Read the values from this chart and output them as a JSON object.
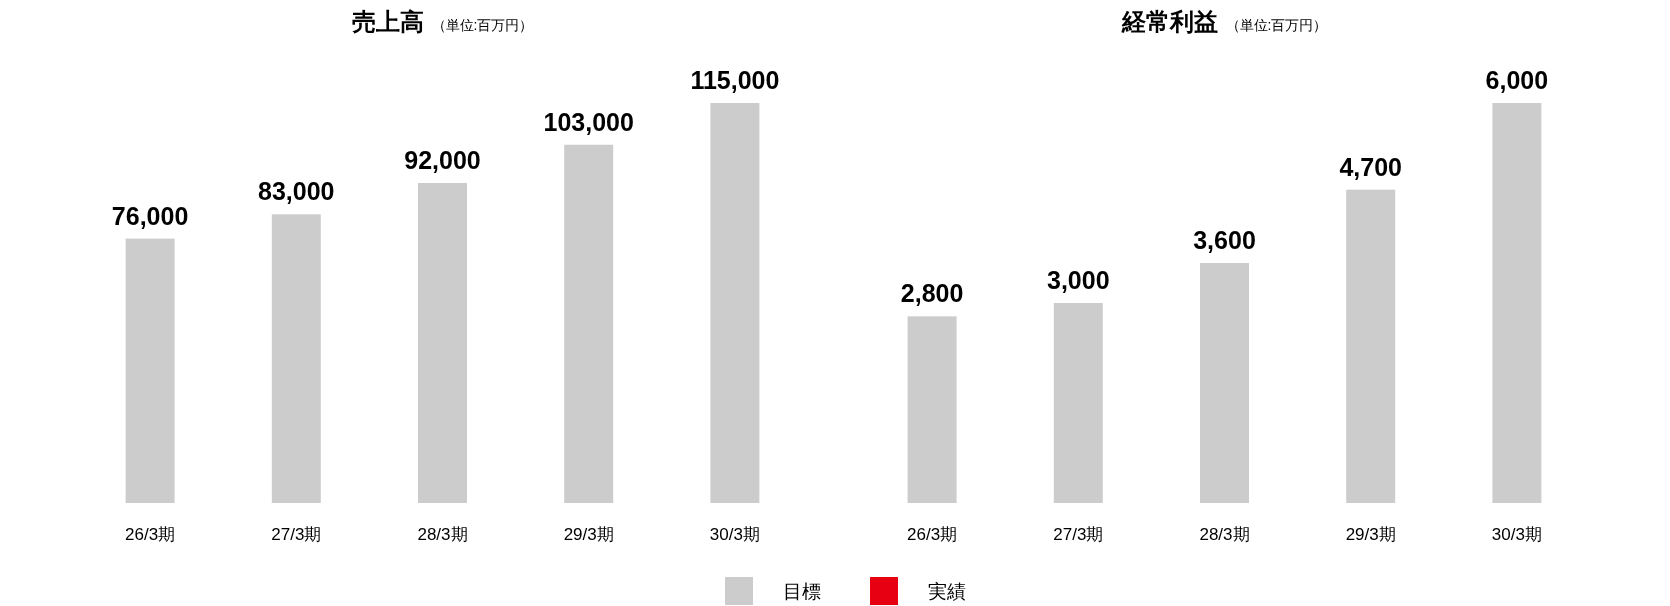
{
  "chart_data": [
    {
      "type": "bar",
      "title": "売上高",
      "subtitle": "（単位:百万円）",
      "categories": [
        "26/3期",
        "27/3期",
        "28/3期",
        "29/3期",
        "30/3期"
      ],
      "series": [
        {
          "name": "目標",
          "color": "#cccccc",
          "values": [
            76000,
            83000,
            92000,
            103000,
            115000
          ],
          "value_labels": [
            "76,000",
            "83,000",
            "92,000",
            "103,000",
            "115,000"
          ]
        },
        {
          "name": "実績",
          "color": "#e60012",
          "values": [
            null,
            null,
            null,
            null,
            null
          ]
        }
      ],
      "legend": "bottom"
    },
    {
      "type": "bar",
      "title": "経常利益",
      "subtitle": "（単位:百万円）",
      "categories": [
        "26/3期",
        "27/3期",
        "28/3期",
        "29/3期",
        "30/3期"
      ],
      "series": [
        {
          "color": "#cccccc",
          "values": [
            2800,
            3000,
            3600,
            4700,
            6000
          ],
          "value_labels": [
            "2,800",
            "3,000",
            "3,600",
            "4,700",
            "6,000"
          ]
        }
      ]
    }
  ]
}
